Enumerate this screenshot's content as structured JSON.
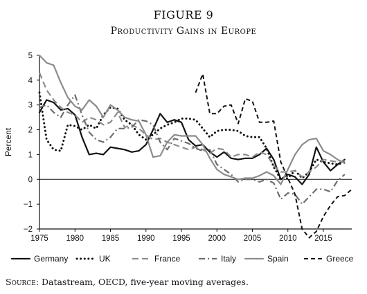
{
  "figure": {
    "title": "FIGURE 9",
    "subtitle": "Productivity Gains in Europe",
    "source_label": "Source:",
    "source_text": "Datastream, OECD, five-year moving averages."
  },
  "chart_data": {
    "type": "line",
    "title": "Productivity Gains in Europe",
    "xlabel": "",
    "ylabel": "Percent",
    "xlim": [
      1975,
      2019
    ],
    "ylim": [
      -2,
      5
    ],
    "x_ticks": [
      1975,
      1980,
      1985,
      1990,
      1995,
      2000,
      2005,
      2010,
      2015
    ],
    "y_ticks": [
      -2,
      -1,
      0,
      1,
      2,
      3,
      4,
      5
    ],
    "legend_position": "bottom",
    "grid": false,
    "series": [
      {
        "name": "Germany",
        "style": "solid-black",
        "color": "#111111",
        "points": [
          [
            1975,
            2.7
          ],
          [
            1976,
            3.2
          ],
          [
            1977,
            3.1
          ],
          [
            1978,
            2.8
          ],
          [
            1979,
            2.85
          ],
          [
            1980,
            2.6
          ],
          [
            1981,
            1.7
          ],
          [
            1982,
            1.0
          ],
          [
            1983,
            1.05
          ],
          [
            1984,
            1.0
          ],
          [
            1985,
            1.3
          ],
          [
            1986,
            1.25
          ],
          [
            1987,
            1.2
          ],
          [
            1988,
            1.1
          ],
          [
            1989,
            1.15
          ],
          [
            1990,
            1.4
          ],
          [
            1991,
            2.0
          ],
          [
            1992,
            2.65
          ],
          [
            1993,
            2.3
          ],
          [
            1994,
            2.4
          ],
          [
            1995,
            2.3
          ],
          [
            1996,
            1.6
          ],
          [
            1997,
            1.35
          ],
          [
            1998,
            1.4
          ],
          [
            1999,
            1.1
          ],
          [
            2000,
            0.9
          ],
          [
            2001,
            1.1
          ],
          [
            2002,
            0.85
          ],
          [
            2003,
            0.8
          ],
          [
            2004,
            0.85
          ],
          [
            2005,
            0.85
          ],
          [
            2006,
            1.0
          ],
          [
            2007,
            1.25
          ],
          [
            2008,
            0.8
          ],
          [
            2009,
            0.0
          ],
          [
            2010,
            0.2
          ],
          [
            2011,
            0.1
          ],
          [
            2012,
            -0.2
          ],
          [
            2013,
            0.2
          ],
          [
            2014,
            1.3
          ],
          [
            2015,
            0.7
          ],
          [
            2016,
            0.35
          ],
          [
            2017,
            0.6
          ],
          [
            2018,
            0.8
          ]
        ]
      },
      {
        "name": "UK",
        "style": "dotted-black",
        "color": "#111111",
        "points": [
          [
            1975,
            3.5
          ],
          [
            1976,
            1.6
          ],
          [
            1977,
            1.2
          ],
          [
            1978,
            1.15
          ],
          [
            1979,
            2.2
          ],
          [
            1980,
            2.15
          ],
          [
            1981,
            2.0
          ],
          [
            1982,
            2.2
          ],
          [
            1983,
            2.05
          ],
          [
            1984,
            2.6
          ],
          [
            1985,
            2.9
          ],
          [
            1986,
            2.85
          ],
          [
            1987,
            2.4
          ],
          [
            1988,
            2.2
          ],
          [
            1989,
            1.8
          ],
          [
            1990,
            1.6
          ],
          [
            1991,
            1.8
          ],
          [
            1992,
            2.05
          ],
          [
            1993,
            2.2
          ],
          [
            1994,
            2.3
          ],
          [
            1995,
            2.45
          ],
          [
            1996,
            2.45
          ],
          [
            1997,
            2.4
          ],
          [
            1998,
            2.05
          ],
          [
            1999,
            1.7
          ],
          [
            2000,
            1.95
          ],
          [
            2001,
            2.0
          ],
          [
            2002,
            2.0
          ],
          [
            2003,
            1.95
          ],
          [
            2004,
            1.75
          ],
          [
            2005,
            1.7
          ],
          [
            2006,
            1.7
          ],
          [
            2007,
            1.25
          ],
          [
            2008,
            0.5
          ],
          [
            2009,
            0.0
          ],
          [
            2010,
            0.05
          ],
          [
            2011,
            0.35
          ],
          [
            2012,
            0.05
          ],
          [
            2013,
            0.3
          ],
          [
            2014,
            0.8
          ],
          [
            2015,
            0.7
          ],
          [
            2016,
            0.65
          ],
          [
            2017,
            0.6
          ],
          [
            2018,
            0.7
          ]
        ]
      },
      {
        "name": "France",
        "style": "dashed-gray",
        "color": "#8c8c8c",
        "points": [
          [
            1975,
            4.3
          ],
          [
            1976,
            3.6
          ],
          [
            1977,
            3.2
          ],
          [
            1978,
            2.9
          ],
          [
            1979,
            2.7
          ],
          [
            1980,
            2.6
          ],
          [
            1981,
            2.3
          ],
          [
            1982,
            2.5
          ],
          [
            1983,
            2.4
          ],
          [
            1984,
            2.2
          ],
          [
            1985,
            2.3
          ],
          [
            1986,
            2.7
          ],
          [
            1987,
            2.1
          ],
          [
            1988,
            2.2
          ],
          [
            1989,
            2.05
          ],
          [
            1990,
            1.8
          ],
          [
            1991,
            1.6
          ],
          [
            1992,
            1.65
          ],
          [
            1993,
            1.5
          ],
          [
            1994,
            1.4
          ],
          [
            1995,
            1.3
          ],
          [
            1996,
            1.2
          ],
          [
            1997,
            1.3
          ],
          [
            1998,
            1.2
          ],
          [
            1999,
            1.05
          ],
          [
            2000,
            1.25
          ],
          [
            2001,
            1.2
          ],
          [
            2002,
            0.9
          ],
          [
            2003,
            1.0
          ],
          [
            2004,
            1.0
          ],
          [
            2005,
            0.9
          ],
          [
            2006,
            1.1
          ],
          [
            2007,
            1.0
          ],
          [
            2008,
            0.55
          ],
          [
            2009,
            0.3
          ],
          [
            2010,
            0.3
          ],
          [
            2011,
            0.35
          ],
          [
            2012,
            0.1
          ],
          [
            2013,
            0.3
          ],
          [
            2014,
            0.5
          ],
          [
            2015,
            0.8
          ],
          [
            2016,
            0.75
          ],
          [
            2017,
            0.7
          ],
          [
            2018,
            0.75
          ]
        ]
      },
      {
        "name": "Italy",
        "style": "dashdot-gray",
        "color": "#6e6e6e",
        "points": [
          [
            1975,
            2.9
          ],
          [
            1976,
            3.0
          ],
          [
            1977,
            2.7
          ],
          [
            1978,
            2.5
          ],
          [
            1979,
            3.0
          ],
          [
            1980,
            3.4
          ],
          [
            1981,
            2.6
          ],
          [
            1982,
            1.9
          ],
          [
            1983,
            1.6
          ],
          [
            1984,
            1.5
          ],
          [
            1985,
            1.7
          ],
          [
            1986,
            2.05
          ],
          [
            1987,
            2.05
          ],
          [
            1988,
            2.1
          ],
          [
            1989,
            2.4
          ],
          [
            1990,
            2.35
          ],
          [
            1991,
            2.2
          ],
          [
            1992,
            1.5
          ],
          [
            1993,
            1.2
          ],
          [
            1994,
            1.65
          ],
          [
            1995,
            1.55
          ],
          [
            1996,
            1.45
          ],
          [
            1997,
            1.25
          ],
          [
            1998,
            1.15
          ],
          [
            1999,
            1.2
          ],
          [
            2000,
            0.6
          ],
          [
            2001,
            0.4
          ],
          [
            2002,
            0.2
          ],
          [
            2003,
            -0.1
          ],
          [
            2004,
            0.0
          ],
          [
            2005,
            0.0
          ],
          [
            2006,
            -0.1
          ],
          [
            2007,
            0.0
          ],
          [
            2008,
            -0.15
          ],
          [
            2009,
            -0.8
          ],
          [
            2010,
            -0.55
          ],
          [
            2011,
            -0.6
          ],
          [
            2012,
            -1.0
          ],
          [
            2013,
            -0.7
          ],
          [
            2014,
            -0.4
          ],
          [
            2015,
            -0.4
          ],
          [
            2016,
            -0.5
          ],
          [
            2017,
            -0.05
          ],
          [
            2018,
            0.2
          ]
        ]
      },
      {
        "name": "Spain",
        "style": "solid-gray",
        "color": "#8c8c8c",
        "points": [
          [
            1975,
            5.0
          ],
          [
            1976,
            4.7
          ],
          [
            1977,
            4.6
          ],
          [
            1978,
            3.9
          ],
          [
            1979,
            3.3
          ],
          [
            1980,
            2.95
          ],
          [
            1981,
            2.8
          ],
          [
            1982,
            3.2
          ],
          [
            1983,
            2.95
          ],
          [
            1984,
            2.5
          ],
          [
            1985,
            3.0
          ],
          [
            1986,
            2.8
          ],
          [
            1987,
            2.5
          ],
          [
            1988,
            2.4
          ],
          [
            1989,
            2.35
          ],
          [
            1990,
            1.8
          ],
          [
            1991,
            0.9
          ],
          [
            1992,
            0.95
          ],
          [
            1993,
            1.5
          ],
          [
            1994,
            1.8
          ],
          [
            1995,
            1.75
          ],
          [
            1996,
            1.75
          ],
          [
            1997,
            1.75
          ],
          [
            1998,
            1.4
          ],
          [
            1999,
            0.85
          ],
          [
            2000,
            0.4
          ],
          [
            2001,
            0.2
          ],
          [
            2002,
            0.1
          ],
          [
            2003,
            0.0
          ],
          [
            2004,
            0.05
          ],
          [
            2005,
            0.05
          ],
          [
            2006,
            0.15
          ],
          [
            2007,
            0.3
          ],
          [
            2008,
            0.15
          ],
          [
            2009,
            -0.2
          ],
          [
            2010,
            0.4
          ],
          [
            2011,
            1.0
          ],
          [
            2012,
            1.4
          ],
          [
            2013,
            1.6
          ],
          [
            2014,
            1.65
          ],
          [
            2015,
            1.15
          ],
          [
            2016,
            1.0
          ],
          [
            2017,
            0.8
          ],
          [
            2018,
            0.65
          ]
        ]
      },
      {
        "name": "Greece",
        "style": "dashed-black",
        "color": "#111111",
        "points": [
          [
            1997,
            3.5
          ],
          [
            1998,
            4.25
          ],
          [
            1999,
            2.65
          ],
          [
            2000,
            2.65
          ],
          [
            2001,
            2.95
          ],
          [
            2002,
            3.0
          ],
          [
            2003,
            2.25
          ],
          [
            2004,
            3.25
          ],
          [
            2005,
            3.15
          ],
          [
            2006,
            2.3
          ],
          [
            2007,
            2.3
          ],
          [
            2008,
            2.35
          ],
          [
            2009,
            0.7
          ],
          [
            2010,
            0.05
          ],
          [
            2011,
            -0.6
          ],
          [
            2012,
            -2.0
          ],
          [
            2013,
            -2.35
          ],
          [
            2014,
            -2.1
          ],
          [
            2015,
            -1.5
          ],
          [
            2016,
            -1.05
          ],
          [
            2017,
            -0.7
          ],
          [
            2018,
            -0.65
          ],
          [
            2019,
            -0.4
          ]
        ]
      }
    ]
  }
}
